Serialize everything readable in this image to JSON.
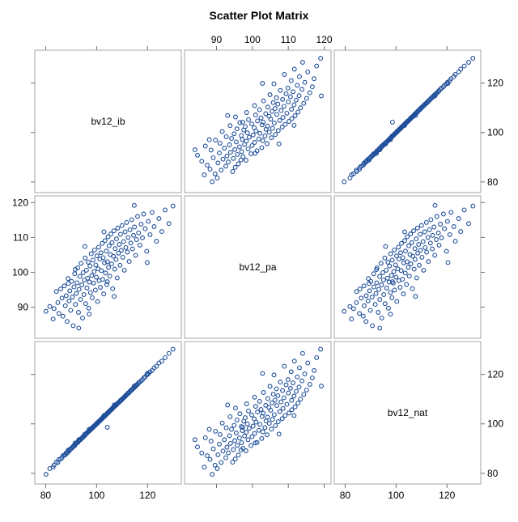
{
  "chart_data": {
    "type": "scatter",
    "title": "Scatter Plot Matrix",
    "variables": [
      "bv12_ib",
      "bv12_pa",
      "bv12_nat"
    ],
    "ranges": {
      "bv12_ib": [
        77,
        132
      ],
      "bv12_pa": [
        82,
        121
      ],
      "bv12_nat": [
        77,
        132
      ]
    },
    "ticks": {
      "bv12_ib": [
        80,
        100,
        120
      ],
      "bv12_pa": [
        90,
        100,
        110,
        120
      ],
      "bv12_nat": [
        80,
        100,
        120
      ]
    },
    "marker": {
      "shape": "open-circle",
      "color": "#1f4e9a"
    },
    "grid": false,
    "points": [
      {
        "ib": 80.1,
        "pa": 88.8,
        "nat": 79.6
      },
      {
        "ib": 81.6,
        "pa": 90.2,
        "nat": 81.9
      },
      {
        "ib": 82.9,
        "pa": 86.6,
        "nat": 82.5
      },
      {
        "ib": 83.3,
        "pa": 89.6,
        "nat": 83.3
      },
      {
        "ib": 84.2,
        "pa": 94.5,
        "nat": 84.5
      },
      {
        "ib": 84.8,
        "pa": 91.3,
        "nat": 84.4
      },
      {
        "ib": 85.2,
        "pa": 88.2,
        "nat": 85.6
      },
      {
        "ib": 85.9,
        "pa": 95.2,
        "nat": 85.8
      },
      {
        "ib": 86.4,
        "pa": 92.6,
        "nat": 86.3
      },
      {
        "ib": 86.8,
        "pa": 87.4,
        "nat": 87.1
      },
      {
        "ib": 87.3,
        "pa": 96.1,
        "nat": 87.4
      },
      {
        "ib": 87.7,
        "pa": 90.4,
        "nat": 87.5
      },
      {
        "ib": 88.1,
        "pa": 93.3,
        "nat": 88.3
      },
      {
        "ib": 88.4,
        "pa": 85.9,
        "nat": 88.2
      },
      {
        "ib": 88.8,
        "pa": 98.2,
        "nat": 89.1
      },
      {
        "ib": 89.2,
        "pa": 91.8,
        "nat": 89.0
      },
      {
        "ib": 89.5,
        "pa": 94.7,
        "nat": 89.6
      },
      {
        "ib": 89.8,
        "pa": 89.1,
        "nat": 89.9
      },
      {
        "ib": 90.2,
        "pa": 97.4,
        "nat": 90.1
      },
      {
        "ib": 90.5,
        "pa": 92.9,
        "nat": 90.6
      },
      {
        "ib": 90.8,
        "pa": 84.7,
        "nat": 90.7
      },
      {
        "ib": 91.1,
        "pa": 95.8,
        "nat": 91.3
      },
      {
        "ib": 91.4,
        "pa": 99.6,
        "nat": 91.2
      },
      {
        "ib": 91.7,
        "pa": 90.8,
        "nat": 91.8
      },
      {
        "ib": 92.0,
        "pa": 93.9,
        "nat": 92.1
      },
      {
        "ib": 92.3,
        "pa": 97.0,
        "nat": 92.4
      },
      {
        "ib": 92.6,
        "pa": 101.3,
        "nat": 92.5
      },
      {
        "ib": 92.9,
        "pa": 88.5,
        "nat": 93.0
      },
      {
        "ib": 93.1,
        "pa": 95.1,
        "nat": 93.2
      },
      {
        "ib": 93.4,
        "pa": 98.8,
        "nat": 93.6
      },
      {
        "ib": 93.7,
        "pa": 92.2,
        "nat": 93.6
      },
      {
        "ib": 93.9,
        "pa": 102.6,
        "nat": 94.1
      },
      {
        "ib": 94.2,
        "pa": 96.4,
        "nat": 94.3
      },
      {
        "ib": 94.5,
        "pa": 86.9,
        "nat": 94.4
      },
      {
        "ib": 94.7,
        "pa": 99.9,
        "nat": 94.8
      },
      {
        "ib": 95.0,
        "pa": 93.6,
        "nat": 95.2
      },
      {
        "ib": 95.2,
        "pa": 97.8,
        "nat": 95.1
      },
      {
        "ib": 95.5,
        "pa": 104.1,
        "nat": 95.6
      },
      {
        "ib": 95.7,
        "pa": 91.0,
        "nat": 95.7
      },
      {
        "ib": 96.0,
        "pa": 100.6,
        "nat": 96.1
      },
      {
        "ib": 96.2,
        "pa": 95.5,
        "nat": 96.3
      },
      {
        "ib": 96.5,
        "pa": 98.3,
        "nat": 96.6
      },
      {
        "ib": 96.7,
        "pa": 102.9,
        "nat": 96.8
      },
      {
        "ib": 96.9,
        "pa": 89.7,
        "nat": 97.0
      },
      {
        "ib": 97.2,
        "pa": 97.2,
        "nat": 97.3
      },
      {
        "ib": 97.4,
        "pa": 101.8,
        "nat": 97.4
      },
      {
        "ib": 97.6,
        "pa": 94.2,
        "nat": 97.8
      },
      {
        "ib": 97.9,
        "pa": 105.3,
        "nat": 97.9
      },
      {
        "ib": 98.1,
        "pa": 99.1,
        "nat": 98.2
      },
      {
        "ib": 98.3,
        "pa": 92.7,
        "nat": 98.4
      },
      {
        "ib": 98.6,
        "pa": 103.5,
        "nat": 98.5
      },
      {
        "ib": 98.8,
        "pa": 96.9,
        "nat": 98.9
      },
      {
        "ib": 99.0,
        "pa": 100.2,
        "nat": 99.1
      },
      {
        "ib": 99.2,
        "pa": 106.4,
        "nat": 99.3
      },
      {
        "ib": 99.5,
        "pa": 94.9,
        "nat": 99.4
      },
      {
        "ib": 99.7,
        "pa": 102.1,
        "nat": 99.8
      },
      {
        "ib": 99.9,
        "pa": 98.6,
        "nat": 100.0
      },
      {
        "ib": 100.1,
        "pa": 104.7,
        "nat": 100.2
      },
      {
        "ib": 100.4,
        "pa": 91.6,
        "nat": 100.3
      },
      {
        "ib": 100.6,
        "pa": 101.0,
        "nat": 100.7
      },
      {
        "ib": 100.8,
        "pa": 107.2,
        "nat": 100.9
      },
      {
        "ib": 101.0,
        "pa": 97.6,
        "nat": 101.1
      },
      {
        "ib": 101.3,
        "pa": 103.8,
        "nat": 101.2
      },
      {
        "ib": 101.5,
        "pa": 95.7,
        "nat": 101.6
      },
      {
        "ib": 101.7,
        "pa": 105.6,
        "nat": 101.8
      },
      {
        "ib": 101.9,
        "pa": 100.5,
        "nat": 102.0
      },
      {
        "ib": 102.2,
        "pa": 108.3,
        "nat": 102.1
      },
      {
        "ib": 102.4,
        "pa": 98.0,
        "nat": 102.5
      },
      {
        "ib": 102.6,
        "pa": 104.2,
        "nat": 102.7
      },
      {
        "ib": 102.8,
        "pa": 93.8,
        "nat": 102.9
      },
      {
        "ib": 103.1,
        "pa": 102.7,
        "nat": 103.0
      },
      {
        "ib": 103.3,
        "pa": 109.1,
        "nat": 103.4
      },
      {
        "ib": 103.5,
        "pa": 99.8,
        "nat": 103.6
      },
      {
        "ib": 103.8,
        "pa": 106.1,
        "nat": 103.7
      },
      {
        "ib": 104.0,
        "pa": 96.5,
        "nat": 104.1
      },
      {
        "ib": 104.2,
        "pa": 103.0,
        "nat": 104.3
      },
      {
        "ib": 104.5,
        "pa": 110.2,
        "nat": 104.4
      },
      {
        "ib": 104.7,
        "pa": 101.4,
        "nat": 104.8
      },
      {
        "ib": 104.9,
        "pa": 107.6,
        "nat": 105.0
      },
      {
        "ib": 105.2,
        "pa": 98.9,
        "nat": 105.2
      },
      {
        "ib": 105.4,
        "pa": 105.1,
        "nat": 105.5
      },
      {
        "ib": 105.6,
        "pa": 111.0,
        "nat": 105.7
      },
      {
        "ib": 105.9,
        "pa": 102.4,
        "nat": 105.8
      },
      {
        "ib": 106.1,
        "pa": 108.5,
        "nat": 106.2
      },
      {
        "ib": 106.3,
        "pa": 95.3,
        "nat": 106.4
      },
      {
        "ib": 106.6,
        "pa": 104.6,
        "nat": 106.6
      },
      {
        "ib": 106.8,
        "pa": 111.9,
        "nat": 106.9
      },
      {
        "ib": 107.1,
        "pa": 100.9,
        "nat": 107.1
      },
      {
        "ib": 107.3,
        "pa": 106.8,
        "nat": 107.4
      },
      {
        "ib": 107.6,
        "pa": 103.7,
        "nat": 107.5
      },
      {
        "ib": 107.8,
        "pa": 109.6,
        "nat": 107.9
      },
      {
        "ib": 108.1,
        "pa": 98.4,
        "nat": 108.1
      },
      {
        "ib": 108.3,
        "pa": 112.7,
        "nat": 108.4
      },
      {
        "ib": 108.6,
        "pa": 105.5,
        "nat": 108.5
      },
      {
        "ib": 108.9,
        "pa": 108.0,
        "nat": 108.9
      },
      {
        "ib": 109.2,
        "pa": 102.0,
        "nat": 109.1
      },
      {
        "ib": 109.4,
        "pa": 110.9,
        "nat": 109.5
      },
      {
        "ib": 109.7,
        "pa": 106.3,
        "nat": 109.6
      },
      {
        "ib": 110.0,
        "pa": 113.4,
        "nat": 110.0
      },
      {
        "ib": 110.3,
        "pa": 104.3,
        "nat": 110.2
      },
      {
        "ib": 110.6,
        "pa": 108.8,
        "nat": 110.6
      },
      {
        "ib": 110.9,
        "pa": 100.6,
        "nat": 110.8
      },
      {
        "ib": 111.2,
        "pa": 111.6,
        "nat": 111.2
      },
      {
        "ib": 111.5,
        "pa": 107.1,
        "nat": 111.4
      },
      {
        "ib": 111.8,
        "pa": 114.3,
        "nat": 111.9
      },
      {
        "ib": 112.1,
        "pa": 105.8,
        "nat": 112.0
      },
      {
        "ib": 112.4,
        "pa": 110.0,
        "nat": 112.5
      },
      {
        "ib": 112.8,
        "pa": 103.1,
        "nat": 112.7
      },
      {
        "ib": 113.1,
        "pa": 112.2,
        "nat": 113.1
      },
      {
        "ib": 113.4,
        "pa": 108.4,
        "nat": 113.5
      },
      {
        "ib": 113.8,
        "pa": 115.1,
        "nat": 113.7
      },
      {
        "ib": 114.1,
        "pa": 106.7,
        "nat": 114.2
      },
      {
        "ib": 114.5,
        "pa": 110.6,
        "nat": 114.4
      },
      {
        "ib": 114.9,
        "pa": 113.0,
        "nat": 114.9
      },
      {
        "ib": 115.3,
        "pa": 104.9,
        "nat": 115.2
      },
      {
        "ib": 115.7,
        "pa": 109.4,
        "nat": 115.8
      },
      {
        "ib": 116.1,
        "pa": 116.0,
        "nat": 116.0
      },
      {
        "ib": 116.5,
        "pa": 111.3,
        "nat": 116.6
      },
      {
        "ib": 117.0,
        "pa": 107.8,
        "nat": 116.9
      },
      {
        "ib": 117.5,
        "pa": 113.8,
        "nat": 117.4
      },
      {
        "ib": 118.0,
        "pa": 109.9,
        "nat": 117.9
      },
      {
        "ib": 118.5,
        "pa": 116.7,
        "nat": 118.6
      },
      {
        "ib": 119.1,
        "pa": 112.5,
        "nat": 119.0
      },
      {
        "ib": 119.7,
        "pa": 106.0,
        "nat": 119.8
      },
      {
        "ib": 120.3,
        "pa": 114.6,
        "nat": 120.2
      },
      {
        "ib": 121.0,
        "pa": 110.8,
        "nat": 121.1
      },
      {
        "ib": 121.8,
        "pa": 117.2,
        "nat": 121.6
      },
      {
        "ib": 122.6,
        "pa": 113.1,
        "nat": 122.7
      },
      {
        "ib": 123.5,
        "pa": 108.9,
        "nat": 123.3
      },
      {
        "ib": 124.5,
        "pa": 115.4,
        "nat": 124.6
      },
      {
        "ib": 125.6,
        "pa": 111.7,
        "nat": 125.4
      },
      {
        "ib": 126.9,
        "pa": 117.9,
        "nat": 126.8
      },
      {
        "ib": 128.4,
        "pa": 114.0,
        "nat": 128.5
      },
      {
        "ib": 130.0,
        "pa": 119.0,
        "nat": 130.2
      },
      {
        "ib": 104.2,
        "pa": 97.3,
        "nat": 98.6
      },
      {
        "ib": 97.1,
        "pa": 88.0,
        "nat": 97.8
      },
      {
        "ib": 93.0,
        "pa": 84.0,
        "nat": 93.6
      },
      {
        "ib": 114.8,
        "pa": 119.2,
        "nat": 115.3
      },
      {
        "ib": 91.6,
        "pa": 100.8,
        "nat": 92.3
      },
      {
        "ib": 102.9,
        "pa": 111.6,
        "nat": 103.4
      },
      {
        "ib": 119.9,
        "pa": 102.8,
        "nat": 120.4
      },
      {
        "ib": 88.9,
        "pa": 96.8,
        "nat": 89.4
      },
      {
        "ib": 95.4,
        "pa": 107.4,
        "nat": 95.9
      },
      {
        "ib": 106.9,
        "pa": 93.1,
        "nat": 107.6
      }
    ]
  }
}
